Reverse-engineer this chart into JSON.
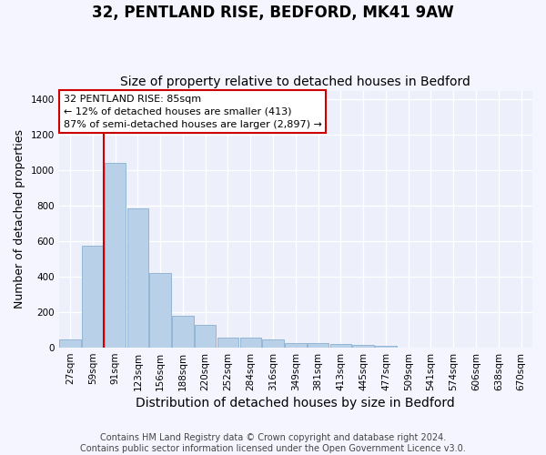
{
  "title": "32, PENTLAND RISE, BEDFORD, MK41 9AW",
  "subtitle": "Size of property relative to detached houses in Bedford",
  "xlabel": "Distribution of detached houses by size in Bedford",
  "ylabel": "Number of detached properties",
  "categories": [
    "27sqm",
    "59sqm",
    "91sqm",
    "123sqm",
    "156sqm",
    "188sqm",
    "220sqm",
    "252sqm",
    "284sqm",
    "316sqm",
    "349sqm",
    "381sqm",
    "413sqm",
    "445sqm",
    "477sqm",
    "509sqm",
    "541sqm",
    "574sqm",
    "606sqm",
    "638sqm",
    "670sqm"
  ],
  "values": [
    45,
    575,
    1040,
    785,
    420,
    180,
    130,
    57,
    57,
    47,
    28,
    27,
    20,
    14,
    10,
    0,
    0,
    0,
    0,
    0,
    0
  ],
  "bar_color": "#b8d0e8",
  "bar_edge_color": "#8ab0d0",
  "vline_color": "#cc0000",
  "annotation_text": "32 PENTLAND RISE: 85sqm\n← 12% of detached houses are smaller (413)\n87% of semi-detached houses are larger (2,897) →",
  "annotation_box_facecolor": "#ffffff",
  "annotation_box_edgecolor": "#cc0000",
  "ylim": [
    0,
    1450
  ],
  "yticks": [
    0,
    200,
    400,
    600,
    800,
    1000,
    1200,
    1400
  ],
  "plot_bg_color": "#edf0fb",
  "fig_bg_color": "#f5f5ff",
  "grid_color": "#ffffff",
  "title_fontsize": 12,
  "subtitle_fontsize": 10,
  "xlabel_fontsize": 10,
  "ylabel_fontsize": 9,
  "tick_fontsize": 7.5,
  "ann_fontsize": 8,
  "footer_fontsize": 7,
  "footer": "Contains HM Land Registry data © Crown copyright and database right 2024.\nContains public sector information licensed under the Open Government Licence v3.0."
}
